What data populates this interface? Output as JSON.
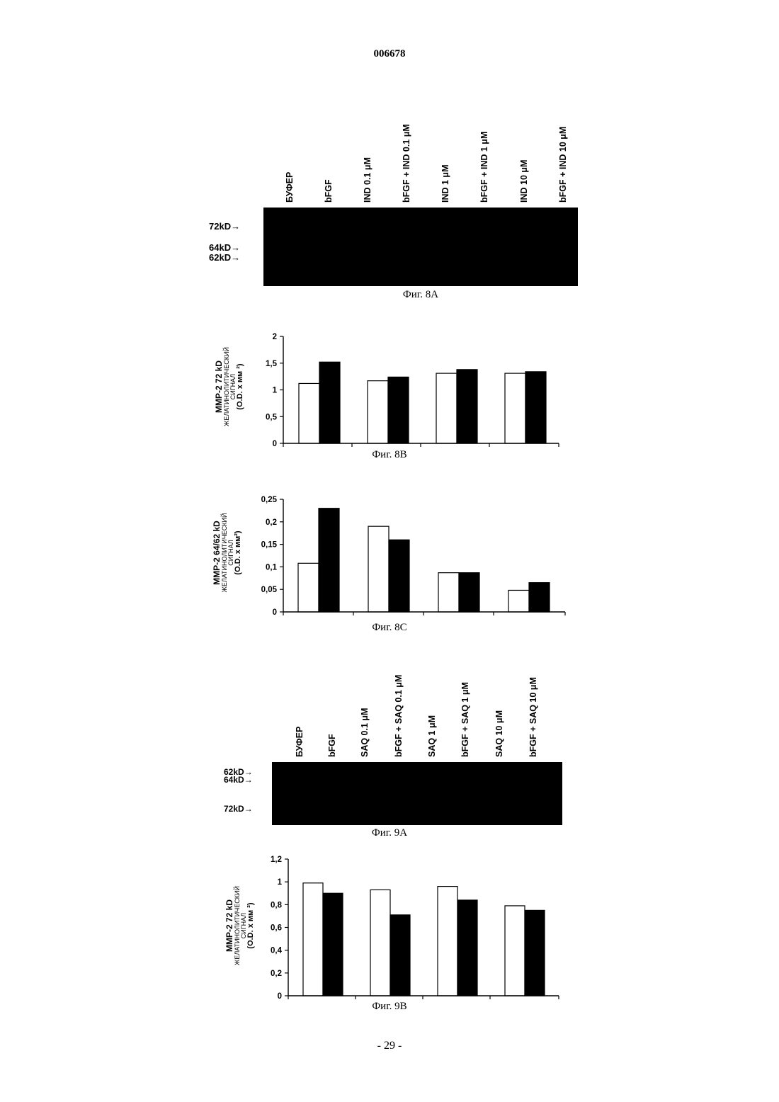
{
  "page": {
    "patent_number": "006678",
    "page_number": "- 29 -"
  },
  "fig8a": {
    "caption": "Фиг. 8А",
    "lanes": [
      "БУФЕР",
      "bFGF",
      "IND 0.1 μM",
      "bFGF + IND 0.1 μM",
      "IND 1 μM",
      "bFGF + IND 1 μM",
      "IND 10 μM",
      "bFGF + IND 10 μM"
    ],
    "markers": [
      "72kD→",
      "64kD→",
      "62kD→"
    ]
  },
  "fig8b": {
    "caption": "Фиг. 8В",
    "ylabel": {
      "line1": "MMP-2 72 kD",
      "line2": "ЖЕЛАТИНОЛИТИЧЕСКИЙ",
      "line3": "СИГНАЛ",
      "line4": "(O.D. x мм ²)"
    }
  },
  "fig8c": {
    "caption": "Фиг. 8С",
    "ylabel": {
      "line1": "MMP-2 64/62 kD",
      "line2": "ЖЕЛАТИНОЛИТИЧЕСКИЙ",
      "line3": "СИГНАЛ",
      "line4": "(O.D. x мм²)"
    }
  },
  "fig9a": {
    "caption": "Фиг. 9А",
    "lanes": [
      "БУФЕР",
      "bFGF",
      "SAQ 0.1 μM",
      "bFGF + SAQ 0.1 μM",
      "SAQ 1 μM",
      "bFGF + SAQ 1 μM",
      "SAQ 10 μM",
      "bFGF + SAQ 10 μM"
    ],
    "markers": [
      "62kD→",
      "64kD→",
      "72kD→"
    ]
  },
  "fig9b": {
    "caption": "Фиг. 9В",
    "ylabel": {
      "line1": "MMP-2 72 kD",
      "line2": "ЖЕЛАТИНОЛИТИЧЕСКИЙ",
      "line3": "СИГНАЛ",
      "line4": "(O.D. x мм ²)"
    }
  },
  "chart_data": [
    {
      "id": "fig8b",
      "type": "bar",
      "ylim": [
        0,
        2
      ],
      "yticks": [
        "0",
        "0,5",
        "1",
        "1,5",
        "2"
      ],
      "ytick_values": [
        0,
        0.5,
        1,
        1.5,
        2
      ],
      "groups": 4,
      "series": [
        {
          "fill": "#ffffff",
          "values": [
            1.12,
            1.17,
            1.31,
            1.31
          ]
        },
        {
          "fill": "#000000",
          "values": [
            1.52,
            1.24,
            1.38,
            1.34
          ]
        }
      ]
    },
    {
      "id": "fig8c",
      "type": "bar",
      "ylim": [
        0,
        0.25
      ],
      "yticks": [
        "0",
        "0,05",
        "0,1",
        "0,15",
        "0,2",
        "0,25"
      ],
      "ytick_values": [
        0,
        0.05,
        0.1,
        0.15,
        0.2,
        0.25
      ],
      "groups": 4,
      "series": [
        {
          "fill": "#ffffff",
          "values": [
            0.108,
            0.19,
            0.087,
            0.048
          ]
        },
        {
          "fill": "#000000",
          "values": [
            0.23,
            0.16,
            0.087,
            0.065
          ]
        }
      ]
    },
    {
      "id": "fig9b",
      "type": "bar",
      "ylim": [
        0,
        1.2
      ],
      "yticks": [
        "0",
        "0,2",
        "0,4",
        "0,6",
        "0,8",
        "1",
        "1,2"
      ],
      "ytick_values": [
        0,
        0.2,
        0.4,
        0.6,
        0.8,
        1.0,
        1.2
      ],
      "groups": 4,
      "series": [
        {
          "fill": "#ffffff",
          "values": [
            0.99,
            0.93,
            0.96,
            0.79
          ]
        },
        {
          "fill": "#000000",
          "values": [
            0.9,
            0.71,
            0.84,
            0.75
          ]
        }
      ]
    }
  ]
}
